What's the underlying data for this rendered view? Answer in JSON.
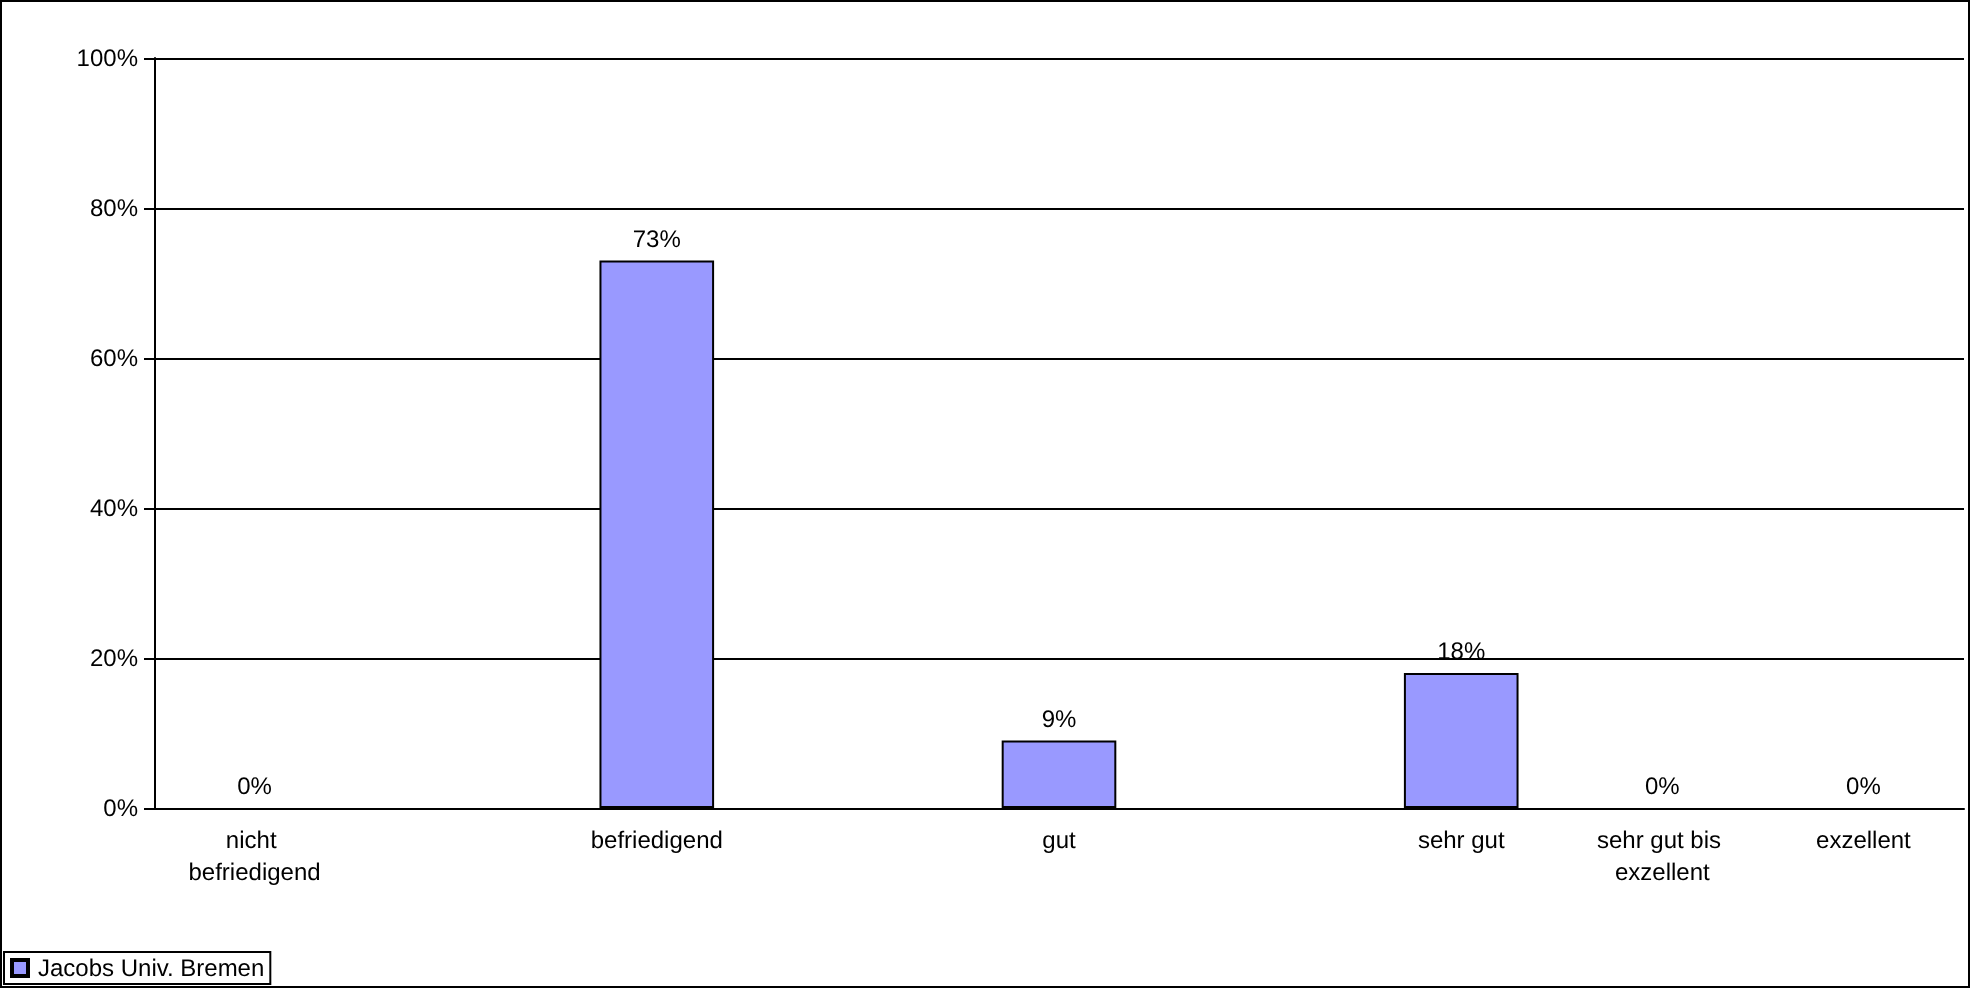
{
  "chart_data": {
    "type": "bar",
    "categories": [
      "nicht befriedigend",
      null,
      "befriedigend",
      null,
      "gut",
      null,
      "sehr gut",
      "sehr gut bis exzellent",
      "exzellent"
    ],
    "series": [
      {
        "name": "Jacobs Univ. Bremen",
        "color": "#9999ff",
        "values": [
          0,
          null,
          73,
          null,
          9,
          null,
          18,
          0,
          0
        ],
        "value_labels": [
          "0%",
          null,
          "73%",
          null,
          "9%",
          null,
          "18%",
          "0%",
          "0%"
        ]
      }
    ],
    "ylim": [
      0,
      100
    ],
    "yticks": [
      {
        "value": 0,
        "label": "0%"
      },
      {
        "value": 20,
        "label": "20%"
      },
      {
        "value": 40,
        "label": "40%"
      },
      {
        "value": 60,
        "label": "60%"
      },
      {
        "value": 80,
        "label": "80%"
      },
      {
        "value": 100,
        "label": "100%"
      }
    ],
    "grid": "y",
    "legend": "bottom left"
  }
}
